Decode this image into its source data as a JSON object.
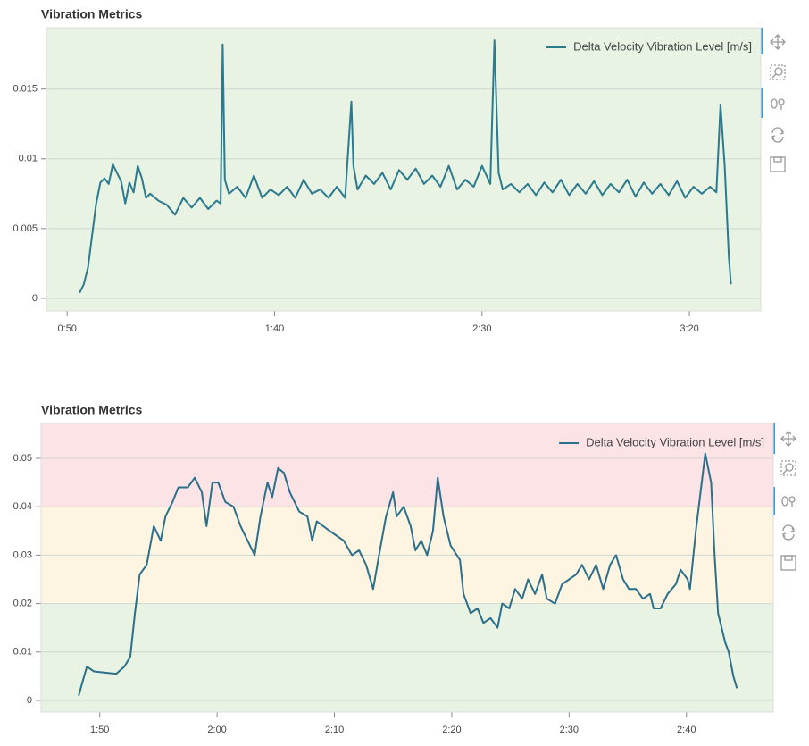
{
  "chart_data": [
    {
      "type": "line",
      "title": "Vibration Metrics",
      "x": [
        53,
        54,
        55,
        56,
        57,
        58,
        59,
        60,
        61,
        62,
        63,
        64,
        65,
        66,
        67,
        68,
        69,
        70,
        72,
        74,
        76,
        78,
        80,
        82,
        84,
        86,
        87,
        87.5,
        88,
        89,
        91,
        93,
        95,
        97,
        99,
        101,
        103,
        105,
        107,
        109,
        111,
        113,
        115,
        117,
        118.5,
        119,
        120,
        122,
        124,
        126,
        128,
        130,
        132,
        134,
        136,
        138,
        140,
        142,
        144,
        146,
        148,
        150,
        152,
        153,
        154,
        155,
        157,
        159,
        161,
        163,
        165,
        167,
        169,
        171,
        173,
        175,
        177,
        179,
        181,
        183,
        185,
        187,
        189,
        191,
        193,
        195,
        197,
        199,
        201,
        203,
        205,
        206.5,
        207.5,
        208.5,
        209.5,
        210
      ],
      "series": [
        {
          "name": "Delta Velocity Vibration Level [m/s]",
          "color": "#2b7a8e",
          "values": [
            0.0004,
            0.001,
            0.0022,
            0.0045,
            0.0068,
            0.0083,
            0.0086,
            0.0082,
            0.0096,
            0.009,
            0.0084,
            0.0068,
            0.0083,
            0.0076,
            0.0095,
            0.0086,
            0.0072,
            0.0075,
            0.007,
            0.0067,
            0.006,
            0.0072,
            0.0065,
            0.0072,
            0.0064,
            0.007,
            0.0068,
            0.0182,
            0.0085,
            0.0075,
            0.008,
            0.0072,
            0.0088,
            0.0072,
            0.0078,
            0.0074,
            0.008,
            0.0072,
            0.0085,
            0.0075,
            0.0078,
            0.0072,
            0.008,
            0.0072,
            0.0141,
            0.0095,
            0.0078,
            0.0088,
            0.0082,
            0.009,
            0.0078,
            0.0092,
            0.0085,
            0.0093,
            0.0082,
            0.0088,
            0.008,
            0.0095,
            0.0078,
            0.0085,
            0.008,
            0.0095,
            0.0082,
            0.0185,
            0.009,
            0.0078,
            0.0082,
            0.0076,
            0.0082,
            0.0074,
            0.0083,
            0.0076,
            0.0085,
            0.0074,
            0.0082,
            0.0075,
            0.0084,
            0.0074,
            0.0082,
            0.0076,
            0.0085,
            0.0073,
            0.0083,
            0.0075,
            0.0082,
            0.0074,
            0.0084,
            0.0072,
            0.008,
            0.0075,
            0.008,
            0.0076,
            0.0139,
            0.0095,
            0.003,
            0.001
          ]
        }
      ],
      "xlim": [
        45,
        217.2
      ],
      "xticks": [
        {
          "value": 50,
          "label": "0:50"
        },
        {
          "value": 100,
          "label": "1:40"
        },
        {
          "value": 150,
          "label": "2:30"
        },
        {
          "value": 200,
          "label": "3:20"
        }
      ],
      "ylim": [
        -0.0009,
        0.0194
      ],
      "yticks": [
        0,
        0.005,
        0.01,
        0.015
      ],
      "grid": true,
      "legend": "top_right",
      "bands": [
        {
          "color": "#e8f3e3"
        }
      ]
    },
    {
      "type": "line",
      "title": "Vibration Metrics",
      "x": [
        108.2,
        108.9,
        109.5,
        111.4,
        112.1,
        112.6,
        113.0,
        113.4,
        114.0,
        114.6,
        115.2,
        115.6,
        116.2,
        116.7,
        117.5,
        118.1,
        118.7,
        119.1,
        119.6,
        120.1,
        120.7,
        121.4,
        122.0,
        122.6,
        123.2,
        123.7,
        124.3,
        124.7,
        125.2,
        125.7,
        126.2,
        127.0,
        127.7,
        128.1,
        128.5,
        129.6,
        130.8,
        131.5,
        132.1,
        132.7,
        133.3,
        133.8,
        134.4,
        135.0,
        135.3,
        135.9,
        136.5,
        136.9,
        137.4,
        137.9,
        138.4,
        138.8,
        139.3,
        139.9,
        140.7,
        141.0,
        141.6,
        142.2,
        142.7,
        143.3,
        143.9,
        144.3,
        144.9,
        145.4,
        146.0,
        146.5,
        147.1,
        147.7,
        148.1,
        148.8,
        149.4,
        150.0,
        150.6,
        151.1,
        151.7,
        152.3,
        152.9,
        153.5,
        154.0,
        154.6,
        155.1,
        155.7,
        156.3,
        156.9,
        157.2,
        157.8,
        158.4,
        159.1,
        159.5,
        160.1,
        160.3,
        160.8,
        161.6,
        162.1,
        162.4,
        162.7,
        163.3,
        163.6,
        164.0,
        164.3
      ],
      "series": [
        {
          "name": "Delta Velocity Vibration Level [m/s]",
          "color": "#2b6f8a",
          "values": [
            0.001,
            0.007,
            0.006,
            0.0055,
            0.007,
            0.009,
            0.018,
            0.026,
            0.028,
            0.036,
            0.033,
            0.038,
            0.041,
            0.044,
            0.044,
            0.046,
            0.043,
            0.036,
            0.045,
            0.045,
            0.041,
            0.04,
            0.036,
            0.033,
            0.03,
            0.038,
            0.045,
            0.042,
            0.048,
            0.047,
            0.043,
            0.039,
            0.038,
            0.033,
            0.037,
            0.035,
            0.033,
            0.03,
            0.031,
            0.028,
            0.023,
            0.03,
            0.038,
            0.043,
            0.038,
            0.04,
            0.036,
            0.031,
            0.033,
            0.03,
            0.035,
            0.046,
            0.038,
            0.032,
            0.029,
            0.022,
            0.018,
            0.019,
            0.016,
            0.017,
            0.015,
            0.02,
            0.019,
            0.023,
            0.021,
            0.025,
            0.022,
            0.026,
            0.021,
            0.02,
            0.024,
            0.025,
            0.026,
            0.028,
            0.025,
            0.028,
            0.023,
            0.028,
            0.03,
            0.025,
            0.023,
            0.023,
            0.021,
            0.022,
            0.019,
            0.019,
            0.022,
            0.024,
            0.027,
            0.025,
            0.023,
            0.035,
            0.051,
            0.045,
            0.03,
            0.018,
            0.012,
            0.01,
            0.005,
            0.0025
          ]
        }
      ],
      "xlim": [
        105,
        167.4
      ],
      "xticks": [
        {
          "value": 110,
          "label": "1:50"
        },
        {
          "value": 120,
          "label": "2:00"
        },
        {
          "value": 130,
          "label": "2:10"
        },
        {
          "value": 140,
          "label": "2:20"
        },
        {
          "value": 150,
          "label": "2:30"
        },
        {
          "value": 160,
          "label": "2:40"
        }
      ],
      "ylim": [
        -0.0024,
        0.0572
      ],
      "yticks": [
        0,
        0.01,
        0.02,
        0.03,
        0.04,
        0.05
      ],
      "grid": true,
      "legend": "top_right",
      "bands": [
        {
          "to": 0.02,
          "color": "#e8f3e3"
        },
        {
          "from": 0.02,
          "to": 0.04,
          "color": "#fdf5e2"
        },
        {
          "from": 0.04,
          "color": "#fbe3e6"
        }
      ]
    }
  ]
}
